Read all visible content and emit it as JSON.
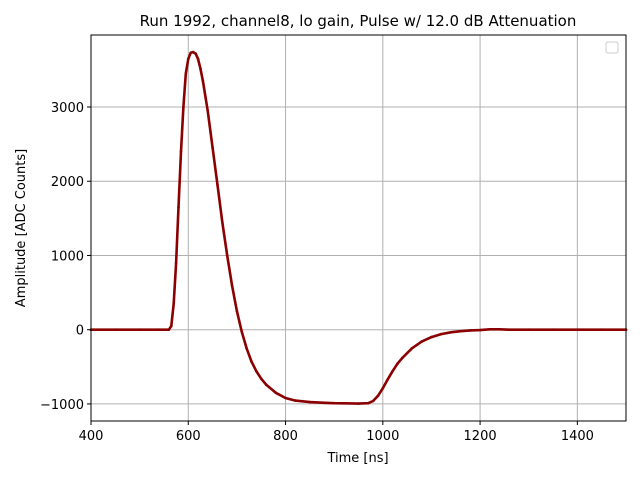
{
  "chart_data": {
    "type": "line",
    "title": "Run 1992, channel8, lo gain, Pulse w/ 12.0 dB Attenuation",
    "xlabel": "Time [ns]",
    "ylabel": "Amplitude [ADC Counts]",
    "xlim": [
      400,
      1500
    ],
    "ylim": [
      -1230,
      3970
    ],
    "xticks": [
      400,
      600,
      800,
      1000,
      1200,
      1400
    ],
    "yticks": [
      -1000,
      0,
      1000,
      2000,
      3000
    ],
    "ytick_labels": [
      "−1000",
      "0",
      "1000",
      "2000",
      "3000"
    ],
    "grid": true,
    "legend": "top-right (empty)",
    "series": [
      {
        "color": "#8b0000",
        "x": [
          400,
          450,
          500,
          540,
          560,
          565,
          570,
          575,
          580,
          585,
          590,
          595,
          600,
          605,
          610,
          615,
          620,
          625,
          630,
          640,
          650,
          660,
          670,
          680,
          690,
          700,
          710,
          720,
          730,
          740,
          750,
          760,
          780,
          800,
          820,
          850,
          880,
          900,
          920,
          950,
          970,
          980,
          990,
          1000,
          1010,
          1020,
          1030,
          1040,
          1060,
          1080,
          1100,
          1120,
          1140,
          1160,
          1180,
          1200,
          1220,
          1240,
          1260,
          1300,
          1350,
          1400,
          1450,
          1500
        ],
        "y": [
          0,
          0,
          0,
          0,
          0,
          50,
          350,
          900,
          1650,
          2400,
          3000,
          3450,
          3650,
          3730,
          3740,
          3720,
          3650,
          3520,
          3350,
          2950,
          2450,
          1950,
          1450,
          1000,
          600,
          250,
          -30,
          -250,
          -430,
          -560,
          -660,
          -740,
          -850,
          -920,
          -955,
          -975,
          -985,
          -990,
          -992,
          -995,
          -990,
          -960,
          -890,
          -790,
          -670,
          -560,
          -460,
          -380,
          -250,
          -160,
          -100,
          -60,
          -35,
          -20,
          -10,
          -5,
          5,
          5,
          0,
          0,
          0,
          0,
          0,
          0
        ]
      }
    ]
  }
}
